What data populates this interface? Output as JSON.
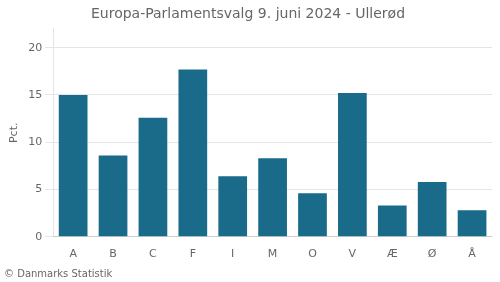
{
  "chart_data": {
    "type": "bar",
    "title": "Europa-Parlamentsvalg 9. juni 2024 - Ullerød",
    "categories": [
      "A",
      "B",
      "C",
      "F",
      "I",
      "M",
      "O",
      "V",
      "Æ",
      "Ø",
      "Å"
    ],
    "values": [
      15.0,
      8.6,
      12.6,
      17.7,
      6.4,
      8.3,
      4.6,
      15.2,
      3.3,
      5.8,
      2.8
    ],
    "color": "#1a6b8a",
    "ylabel": "Pct.",
    "footer": "© Danmarks Statistik",
    "ylim": [
      0,
      22
    ],
    "yticks": [
      0,
      5,
      10,
      15,
      20
    ],
    "grid": true
  }
}
